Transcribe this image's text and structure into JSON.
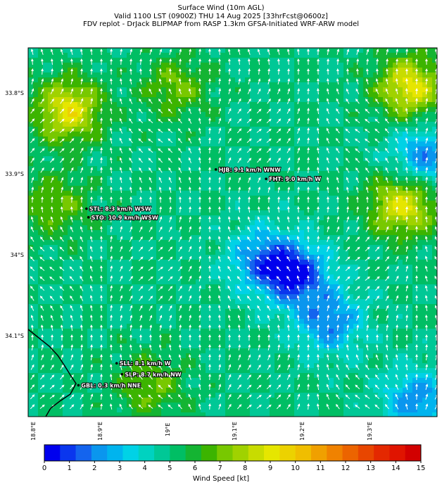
{
  "title_lines": [
    "Surface Wind (10m AGL)",
    "Valid 1100 LST (0900Z) THU 14 Aug 2025 [33hrFcst@0600z]",
    "FDV replot - DrJack BLIPMAP from RASP 1.3km GFSA-Initiated WRF-ARW model"
  ],
  "lat_labels": [
    "33.8°S",
    "33.9°S",
    "34°S",
    "34.1°S"
  ],
  "lat_values": [
    -33.8,
    -33.9,
    -34.0,
    -34.1
  ],
  "lon_labels": [
    "18.8°E",
    "18.9°E",
    "19°E",
    "19.1°E",
    "19.2°E",
    "19.3°E"
  ],
  "lon_values": [
    18.8,
    18.9,
    19.0,
    19.1,
    19.2,
    19.3
  ],
  "map_extent": {
    "lon_min": 18.8,
    "lon_max": 19.41,
    "lat_min": -34.2,
    "lat_max": -33.73
  },
  "stations": [
    {
      "id": "HJB",
      "label": "HJB: 9.1 km/h WNW",
      "lon": 19.08,
      "lat": -33.885,
      "speed_kmh": 9.1,
      "dir": "WNW"
    },
    {
      "id": "FHT",
      "label": "FHT: 9.0 km/h W",
      "lon": 19.155,
      "lat": -33.897,
      "speed_kmh": 9.0,
      "dir": "W"
    },
    {
      "id": "STL",
      "label": "STL: 8.3 km/h WSW",
      "lon": 18.887,
      "lat": -33.935,
      "speed_kmh": 8.3,
      "dir": "WSW"
    },
    {
      "id": "STO",
      "label": "STO: 10.9 km/h WSW",
      "lon": 18.89,
      "lat": -33.946,
      "speed_kmh": 10.9,
      "dir": "WSW"
    },
    {
      "id": "SLL",
      "label": "SLL: 8.1 km/h W",
      "lon": 18.932,
      "lat": -34.132,
      "speed_kmh": 8.1,
      "dir": "W"
    },
    {
      "id": "SLP",
      "label": "SLP: 8.7 km/h NW",
      "lon": 18.94,
      "lat": -34.146,
      "speed_kmh": 8.7,
      "dir": "NW"
    },
    {
      "id": "GBL",
      "label": "GBL: 0.3 km/h NNE",
      "lon": 18.875,
      "lat": -34.16,
      "speed_kmh": 0.3,
      "dir": "NNE"
    }
  ],
  "colorbar": {
    "label": "Wind Speed [kt]",
    "min": 0,
    "max": 15,
    "ticks": [
      "0",
      "1",
      "2",
      "3",
      "4",
      "5",
      "6",
      "7",
      "8",
      "9",
      "10",
      "11",
      "12",
      "13",
      "14",
      "15"
    ],
    "colors": [
      "#0000ee",
      "#0a36ee",
      "#1464ee",
      "#0a96ee",
      "#00b4ee",
      "#00d2e6",
      "#00d2c0",
      "#00c896",
      "#00be64",
      "#14b432",
      "#3cb400",
      "#78c800",
      "#a0d200",
      "#c8dc00",
      "#e6e600",
      "#ecd200",
      "#f0be00",
      "#f0a000",
      "#f08200",
      "#ec6400",
      "#e84600",
      "#e42800",
      "#e01400",
      "#d20000"
    ]
  },
  "wind_field": {
    "blobs": [
      {
        "lon": 18.86,
        "lat": -33.81,
        "speed_kt": 9
      },
      {
        "lon": 19.02,
        "lat": -33.78,
        "speed_kt": 7
      },
      {
        "lon": 19.37,
        "lat": -33.78,
        "speed_kt": 9
      },
      {
        "lon": 19.36,
        "lat": -33.93,
        "speed_kt": 9
      },
      {
        "lon": 18.84,
        "lat": -33.93,
        "speed_kt": 7
      },
      {
        "lon": 18.98,
        "lat": -34.16,
        "speed_kt": 7
      },
      {
        "lon": 19.2,
        "lat": -34.02,
        "speed_kt": 1
      },
      {
        "lon": 19.25,
        "lat": -34.08,
        "speed_kt": 2
      },
      {
        "lon": 19.39,
        "lat": -33.87,
        "speed_kt": 2
      },
      {
        "lon": 19.15,
        "lat": -34.0,
        "speed_kt": 2
      },
      {
        "lon": 19.38,
        "lat": -34.18,
        "speed_kt": 2
      }
    ],
    "base_speed_kt": 5
  }
}
